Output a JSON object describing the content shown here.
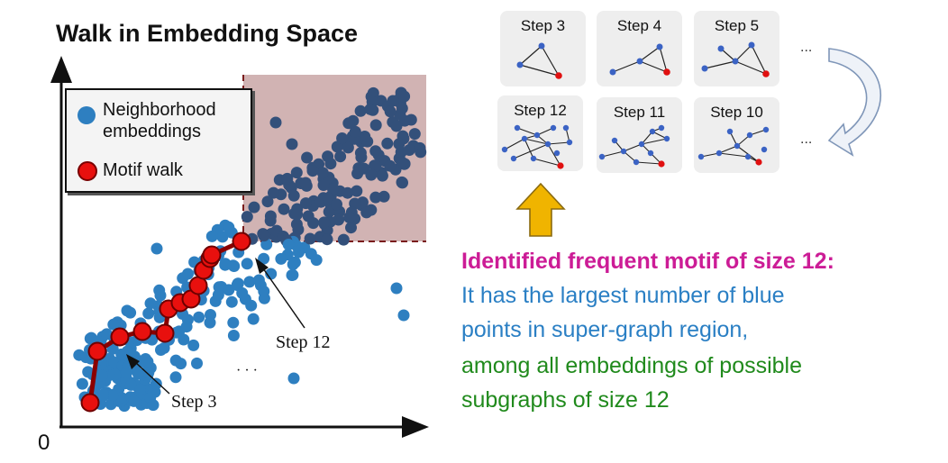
{
  "title": "Walk in Embedding Space",
  "origin_label": "0",
  "legend": {
    "neighborhood": "Neighborhood",
    "neighborhood_line2": "embeddings",
    "motif": "Motif walk"
  },
  "annotations": {
    "step3": "Step 3",
    "step12": "Step 12",
    "dots": "· · ·"
  },
  "colors": {
    "neighborhood": "#2e7fc0",
    "supergraph_region": "#c9a6a6",
    "motif": "#e8100e",
    "motif_line": "#8b0000",
    "caption_magenta": "#cc1c96",
    "caption_blue": "#2a7fc4",
    "caption_green": "#208a1c"
  },
  "steps": {
    "top_row": [
      "Step 3",
      "Step 4",
      "Step 5"
    ],
    "bottom_row": [
      "Step 12",
      "Step 11",
      "Step 10"
    ],
    "ellipsis": "..."
  },
  "caption": {
    "line1": "Identified frequent motif of size 12:",
    "line2": "It has the largest number of blue",
    "line3": "points in super-graph region,",
    "line4": "among all embeddings of possible",
    "line5": "subgraphs of size 12"
  }
}
